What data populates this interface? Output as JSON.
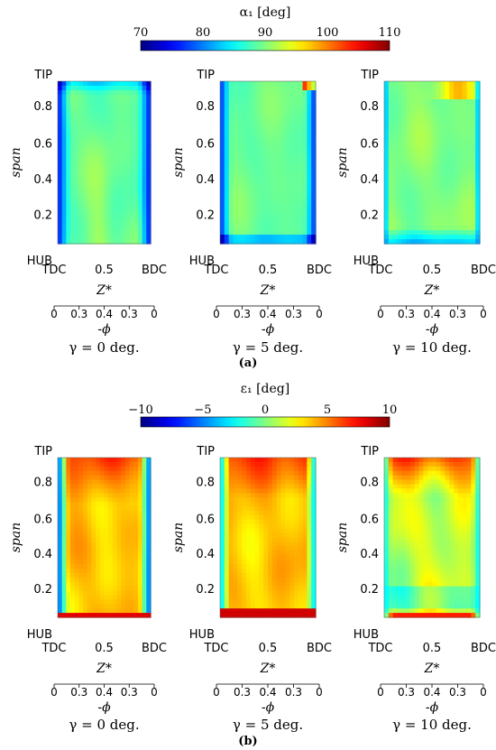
{
  "figure": {
    "panels": [
      {
        "label": "(a)",
        "colorbar": {
          "label": "α₁ [deg]",
          "ticks": [
            "70",
            "80",
            "90",
            "100",
            "110"
          ],
          "min": 70,
          "max": 110,
          "colormap": "jet"
        },
        "subplots": [
          {
            "caption": "γ = 0 deg.",
            "field": "a0"
          },
          {
            "caption": "γ = 5 deg.",
            "field": "a5"
          },
          {
            "caption": "γ = 10 deg.",
            "field": "a10"
          }
        ]
      },
      {
        "label": "(b)",
        "colorbar": {
          "label": "ε₁ [deg]",
          "ticks": [
            "−10",
            "−5",
            "0",
            "5",
            "10"
          ],
          "min": -10,
          "max": 10,
          "colormap": "jet"
        },
        "subplots": [
          {
            "caption": "γ = 0 deg.",
            "field": "b0"
          },
          {
            "caption": "γ = 5 deg.",
            "field": "b5"
          },
          {
            "caption": "γ = 10 deg.",
            "field": "b10"
          }
        ]
      }
    ],
    "axes": {
      "ylabel": "span",
      "ytick_labels": [
        "TIP",
        "0.8",
        "0.6",
        "0.4",
        "0.2",
        "HUB"
      ],
      "xlabel": "Z*",
      "xtick_labels": [
        "TDC",
        "0.5",
        "BDC"
      ],
      "x2label": "-ϕ",
      "x2tick_labels": [
        "0",
        "0.3",
        "0.4",
        "0.3",
        "0"
      ]
    }
  },
  "chart_data": [
    {
      "type": "heatmap",
      "title": "",
      "colorbar_label": "α₁ [deg]",
      "value_range": [
        70,
        110
      ],
      "xlabel": "Z*",
      "ylabel": "span",
      "x_ticks": [
        "TDC",
        "0.5",
        "BDC"
      ],
      "y_ticks": [
        "HUB",
        "0.2",
        "0.4",
        "0.6",
        "0.8",
        "TIP"
      ],
      "secondary_xlabel": "-ϕ",
      "secondary_x_ticks": [
        "0",
        "0.3",
        "0.4",
        "0.3",
        "0"
      ],
      "series": [
        {
          "name": "γ = 0 deg.",
          "typical_value": 88,
          "endwall_value": 75
        },
        {
          "name": "γ = 5 deg.",
          "typical_value": 88,
          "endwall_value": 76
        },
        {
          "name": "γ = 10 deg.",
          "typical_value": 90,
          "endwall_value": 80
        }
      ]
    },
    {
      "type": "heatmap",
      "title": "",
      "colorbar_label": "ε₁ [deg]",
      "value_range": [
        -10,
        10
      ],
      "xlabel": "Z*",
      "ylabel": "span",
      "x_ticks": [
        "TDC",
        "0.5",
        "BDC"
      ],
      "y_ticks": [
        "HUB",
        "0.2",
        "0.4",
        "0.6",
        "0.8",
        "TIP"
      ],
      "secondary_xlabel": "-ϕ",
      "secondary_x_ticks": [
        "0",
        "0.3",
        "0.4",
        "0.3",
        "0"
      ],
      "series": [
        {
          "name": "γ = 0 deg.",
          "typical_value": 5,
          "endwall_value": 10
        },
        {
          "name": "γ = 5 deg.",
          "typical_value": 5,
          "endwall_value": 10
        },
        {
          "name": "γ = 10 deg.",
          "typical_value": 2,
          "endwall_value": 9
        }
      ]
    }
  ]
}
